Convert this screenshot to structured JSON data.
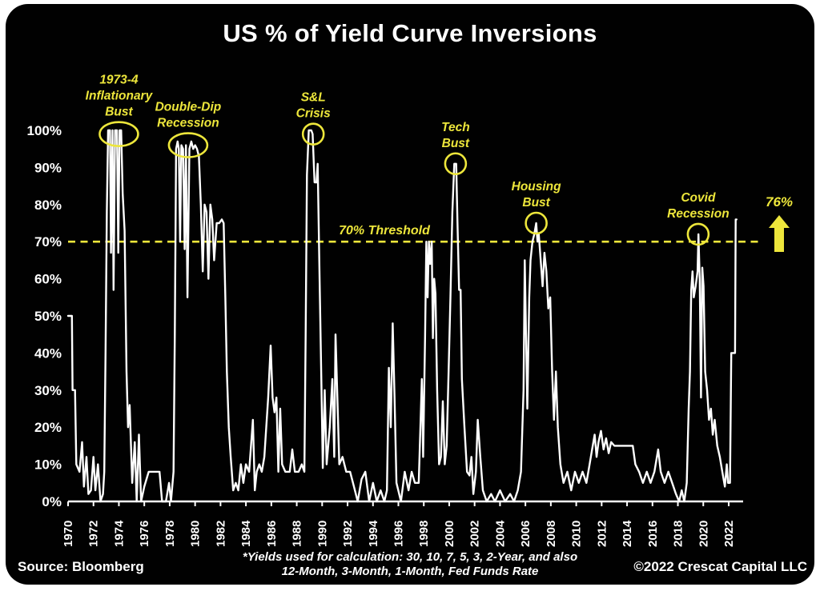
{
  "page": {
    "title": "US % of Yield Curve Inversions"
  },
  "footer": {
    "source": "Source: Bloomberg",
    "note_line1": "*Yields used for calculation: 30, 10, 7, 5, 3, 2-Year, and also",
    "note_line2": "12-Month, 3-Month, 1-Month, Fed Funds Rate",
    "copyright": "©2022 Crescat Capital LLC"
  },
  "colors": {
    "background": "#010101",
    "line": "#ffffff",
    "accent_yellow": "#ede63b",
    "text": "#ffffff"
  },
  "chart_data": {
    "type": "line",
    "title": "US % of Yield Curve Inversions",
    "xlabel": "",
    "ylabel": "",
    "xlim": [
      1970,
      2023
    ],
    "ylim": [
      0,
      100
    ],
    "grid": false,
    "legend": "none",
    "line_color": "#ffffff",
    "x_ticks": [
      1970,
      1972,
      1974,
      1976,
      1978,
      1980,
      1982,
      1984,
      1986,
      1988,
      1990,
      1992,
      1994,
      1996,
      1998,
      2000,
      2002,
      2004,
      2006,
      2008,
      2010,
      2012,
      2014,
      2016,
      2018,
      2020,
      2022
    ],
    "y_tick_labels": [
      "100%",
      "90%",
      "80%",
      "70%",
      "60%",
      "50%",
      "40%",
      "30%",
      "20%",
      "10%",
      "0%"
    ],
    "y_tick_values": [
      100,
      90,
      80,
      70,
      60,
      50,
      40,
      30,
      20,
      10,
      0
    ],
    "threshold": {
      "value": 70,
      "label": "70% Threshold",
      "color": "#ede63b",
      "style": "dashed"
    },
    "latest": {
      "label": "76%",
      "value": 76
    },
    "annotations": [
      {
        "text": [
          "1973-4",
          "Inflationary",
          "Bust"
        ],
        "year": 1974.0,
        "value": 99,
        "wide": true
      },
      {
        "text": [
          "Double-Dip",
          "Recession"
        ],
        "year": 1979.45,
        "value": 96,
        "wide": true
      },
      {
        "text": [
          "S&L",
          "Crisis"
        ],
        "year": 1989.3,
        "value": 99,
        "wide": false
      },
      {
        "text": [
          "Tech",
          "Bust"
        ],
        "year": 2000.5,
        "value": 91,
        "wide": false
      },
      {
        "text": [
          "Housing",
          "Bust"
        ],
        "year": 2006.85,
        "value": 75,
        "wide": false
      },
      {
        "text": [
          "Covid",
          "Recession"
        ],
        "year": 2019.6,
        "value": 72,
        "wide": false
      }
    ],
    "series": [
      {
        "name": "US % of yield curve inversions",
        "points": [
          [
            1970.0,
            50
          ],
          [
            1970.3,
            50
          ],
          [
            1970.35,
            30
          ],
          [
            1970.55,
            30
          ],
          [
            1970.65,
            10
          ],
          [
            1970.9,
            8
          ],
          [
            1971.1,
            16
          ],
          [
            1971.25,
            4
          ],
          [
            1971.45,
            12
          ],
          [
            1971.6,
            2
          ],
          [
            1971.8,
            3
          ],
          [
            1972.0,
            12
          ],
          [
            1972.15,
            3
          ],
          [
            1972.35,
            10
          ],
          [
            1972.55,
            0
          ],
          [
            1972.75,
            2
          ],
          [
            1972.85,
            8
          ],
          [
            1972.95,
            40
          ],
          [
            1973.05,
            78
          ],
          [
            1973.15,
            100
          ],
          [
            1973.3,
            100
          ],
          [
            1973.38,
            67
          ],
          [
            1973.5,
            100
          ],
          [
            1973.58,
            57
          ],
          [
            1973.7,
            100
          ],
          [
            1973.85,
            100
          ],
          [
            1973.95,
            67
          ],
          [
            1974.05,
            100
          ],
          [
            1974.18,
            100
          ],
          [
            1974.3,
            83
          ],
          [
            1974.45,
            73
          ],
          [
            1974.6,
            35
          ],
          [
            1974.72,
            20
          ],
          [
            1974.85,
            26
          ],
          [
            1975.05,
            5
          ],
          [
            1975.25,
            16
          ],
          [
            1975.4,
            0
          ],
          [
            1975.58,
            18
          ],
          [
            1975.75,
            0
          ],
          [
            1976.0,
            4
          ],
          [
            1976.35,
            8
          ],
          [
            1976.6,
            8
          ],
          [
            1976.9,
            8
          ],
          [
            1977.2,
            8
          ],
          [
            1977.4,
            0
          ],
          [
            1977.7,
            0
          ],
          [
            1977.95,
            5
          ],
          [
            1978.1,
            0
          ],
          [
            1978.3,
            8
          ],
          [
            1978.4,
            45
          ],
          [
            1978.5,
            95
          ],
          [
            1978.62,
            97
          ],
          [
            1978.72,
            95
          ],
          [
            1978.82,
            70
          ],
          [
            1978.92,
            96
          ],
          [
            1979.05,
            95
          ],
          [
            1979.18,
            68
          ],
          [
            1979.28,
            96
          ],
          [
            1979.4,
            55
          ],
          [
            1979.55,
            95
          ],
          [
            1979.7,
            97
          ],
          [
            1979.85,
            95
          ],
          [
            1980.0,
            96
          ],
          [
            1980.15,
            95
          ],
          [
            1980.3,
            93
          ],
          [
            1980.45,
            80
          ],
          [
            1980.6,
            62
          ],
          [
            1980.75,
            80
          ],
          [
            1980.9,
            78
          ],
          [
            1981.05,
            60
          ],
          [
            1981.2,
            80
          ],
          [
            1981.35,
            76
          ],
          [
            1981.5,
            65
          ],
          [
            1981.7,
            75
          ],
          [
            1981.9,
            75
          ],
          [
            1982.1,
            76
          ],
          [
            1982.25,
            75
          ],
          [
            1982.38,
            55
          ],
          [
            1982.5,
            35
          ],
          [
            1982.65,
            20
          ],
          [
            1982.8,
            12
          ],
          [
            1983.0,
            3
          ],
          [
            1983.2,
            5
          ],
          [
            1983.4,
            3
          ],
          [
            1983.6,
            10
          ],
          [
            1983.8,
            5
          ],
          [
            1984.0,
            10
          ],
          [
            1984.25,
            8
          ],
          [
            1984.55,
            22
          ],
          [
            1984.7,
            3
          ],
          [
            1984.85,
            8
          ],
          [
            1985.05,
            10
          ],
          [
            1985.25,
            8
          ],
          [
            1985.45,
            12
          ],
          [
            1985.6,
            20
          ],
          [
            1985.75,
            28
          ],
          [
            1985.95,
            42
          ],
          [
            1986.1,
            28
          ],
          [
            1986.25,
            24
          ],
          [
            1986.4,
            28
          ],
          [
            1986.55,
            8
          ],
          [
            1986.7,
            25
          ],
          [
            1986.85,
            10
          ],
          [
            1987.1,
            8
          ],
          [
            1987.45,
            8
          ],
          [
            1987.65,
            14
          ],
          [
            1987.85,
            8
          ],
          [
            1988.15,
            8
          ],
          [
            1988.4,
            10
          ],
          [
            1988.6,
            8
          ],
          [
            1988.7,
            45
          ],
          [
            1988.8,
            88
          ],
          [
            1988.95,
            100
          ],
          [
            1989.15,
            100
          ],
          [
            1989.25,
            99
          ],
          [
            1989.4,
            86
          ],
          [
            1989.55,
            86
          ],
          [
            1989.65,
            91
          ],
          [
            1989.8,
            60
          ],
          [
            1989.95,
            30
          ],
          [
            1990.05,
            9
          ],
          [
            1990.2,
            30
          ],
          [
            1990.35,
            10
          ],
          [
            1990.6,
            20
          ],
          [
            1990.8,
            33
          ],
          [
            1990.95,
            12
          ],
          [
            1991.05,
            45
          ],
          [
            1991.2,
            28
          ],
          [
            1991.35,
            10
          ],
          [
            1991.6,
            12
          ],
          [
            1991.9,
            8
          ],
          [
            1992.2,
            8
          ],
          [
            1992.5,
            4
          ],
          [
            1992.8,
            0
          ],
          [
            1993.1,
            6
          ],
          [
            1993.4,
            8
          ],
          [
            1993.7,
            0
          ],
          [
            1994.0,
            5
          ],
          [
            1994.3,
            0
          ],
          [
            1994.6,
            3
          ],
          [
            1994.9,
            0
          ],
          [
            1995.1,
            3
          ],
          [
            1995.25,
            36
          ],
          [
            1995.4,
            20
          ],
          [
            1995.55,
            48
          ],
          [
            1995.7,
            28
          ],
          [
            1995.85,
            5
          ],
          [
            1996.2,
            0
          ],
          [
            1996.5,
            8
          ],
          [
            1996.8,
            3
          ],
          [
            1997.05,
            8
          ],
          [
            1997.3,
            5
          ],
          [
            1997.6,
            5
          ],
          [
            1997.85,
            33
          ],
          [
            1997.95,
            12
          ],
          [
            1998.1,
            44
          ],
          [
            1998.2,
            70
          ],
          [
            1998.3,
            55
          ],
          [
            1998.4,
            70
          ],
          [
            1998.5,
            64
          ],
          [
            1998.62,
            70
          ],
          [
            1998.72,
            44
          ],
          [
            1998.82,
            60
          ],
          [
            1998.92,
            56
          ],
          [
            1999.05,
            30
          ],
          [
            1999.2,
            10
          ],
          [
            1999.35,
            12
          ],
          [
            1999.5,
            27
          ],
          [
            1999.65,
            10
          ],
          [
            1999.8,
            15
          ],
          [
            1999.95,
            35
          ],
          [
            2000.1,
            55
          ],
          [
            2000.25,
            78
          ],
          [
            2000.4,
            91
          ],
          [
            2000.55,
            91
          ],
          [
            2000.65,
            75
          ],
          [
            2000.78,
            57
          ],
          [
            2000.9,
            57
          ],
          [
            2001.0,
            33
          ],
          [
            2001.2,
            20
          ],
          [
            2001.4,
            8
          ],
          [
            2001.6,
            7
          ],
          [
            2001.75,
            12
          ],
          [
            2001.9,
            2
          ],
          [
            2002.1,
            8
          ],
          [
            2002.25,
            22
          ],
          [
            2002.45,
            12
          ],
          [
            2002.65,
            3
          ],
          [
            2002.95,
            0
          ],
          [
            2003.3,
            2
          ],
          [
            2003.6,
            0
          ],
          [
            2004.0,
            3
          ],
          [
            2004.4,
            0
          ],
          [
            2004.8,
            2
          ],
          [
            2005.1,
            0
          ],
          [
            2005.4,
            3
          ],
          [
            2005.65,
            8
          ],
          [
            2005.85,
            30
          ],
          [
            2005.95,
            65
          ],
          [
            2006.05,
            45
          ],
          [
            2006.15,
            25
          ],
          [
            2006.3,
            55
          ],
          [
            2006.4,
            65
          ],
          [
            2006.55,
            70
          ],
          [
            2006.7,
            72
          ],
          [
            2006.85,
            75
          ],
          [
            2006.95,
            70
          ],
          [
            2007.05,
            72
          ],
          [
            2007.2,
            65
          ],
          [
            2007.35,
            58
          ],
          [
            2007.5,
            67
          ],
          [
            2007.65,
            62
          ],
          [
            2007.8,
            52
          ],
          [
            2007.95,
            55
          ],
          [
            2008.1,
            35
          ],
          [
            2008.25,
            22
          ],
          [
            2008.4,
            35
          ],
          [
            2008.55,
            20
          ],
          [
            2008.75,
            10
          ],
          [
            2009.0,
            5
          ],
          [
            2009.3,
            8
          ],
          [
            2009.6,
            3
          ],
          [
            2009.9,
            8
          ],
          [
            2010.2,
            5
          ],
          [
            2010.5,
            8
          ],
          [
            2010.8,
            5
          ],
          [
            2011.05,
            10
          ],
          [
            2011.25,
            14
          ],
          [
            2011.45,
            18
          ],
          [
            2011.6,
            12
          ],
          [
            2011.75,
            16
          ],
          [
            2011.95,
            19
          ],
          [
            2012.15,
            14
          ],
          [
            2012.35,
            17
          ],
          [
            2012.55,
            13
          ],
          [
            2012.75,
            16
          ],
          [
            2013.0,
            15
          ],
          [
            2013.5,
            15
          ],
          [
            2014.0,
            15
          ],
          [
            2014.45,
            15
          ],
          [
            2014.65,
            10
          ],
          [
            2014.95,
            8
          ],
          [
            2015.25,
            5
          ],
          [
            2015.55,
            8
          ],
          [
            2015.85,
            5
          ],
          [
            2016.15,
            8
          ],
          [
            2016.45,
            14
          ],
          [
            2016.65,
            8
          ],
          [
            2016.95,
            5
          ],
          [
            2017.25,
            8
          ],
          [
            2017.55,
            5
          ],
          [
            2017.85,
            2
          ],
          [
            2018.1,
            0
          ],
          [
            2018.3,
            3
          ],
          [
            2018.5,
            0
          ],
          [
            2018.7,
            5
          ],
          [
            2018.85,
            25
          ],
          [
            2018.95,
            35
          ],
          [
            2019.05,
            57
          ],
          [
            2019.15,
            62
          ],
          [
            2019.25,
            55
          ],
          [
            2019.4,
            58
          ],
          [
            2019.55,
            62
          ],
          [
            2019.62,
            72
          ],
          [
            2019.72,
            60
          ],
          [
            2019.82,
            28
          ],
          [
            2019.92,
            63
          ],
          [
            2020.02,
            58
          ],
          [
            2020.15,
            35
          ],
          [
            2020.3,
            30
          ],
          [
            2020.45,
            22
          ],
          [
            2020.6,
            25
          ],
          [
            2020.75,
            18
          ],
          [
            2020.9,
            22
          ],
          [
            2021.1,
            15
          ],
          [
            2021.3,
            12
          ],
          [
            2021.5,
            8
          ],
          [
            2021.7,
            4
          ],
          [
            2021.85,
            10
          ],
          [
            2021.95,
            5
          ],
          [
            2022.1,
            5
          ],
          [
            2022.2,
            40
          ],
          [
            2022.5,
            40
          ],
          [
            2022.55,
            76
          ],
          [
            2022.62,
            76
          ]
        ]
      }
    ]
  }
}
